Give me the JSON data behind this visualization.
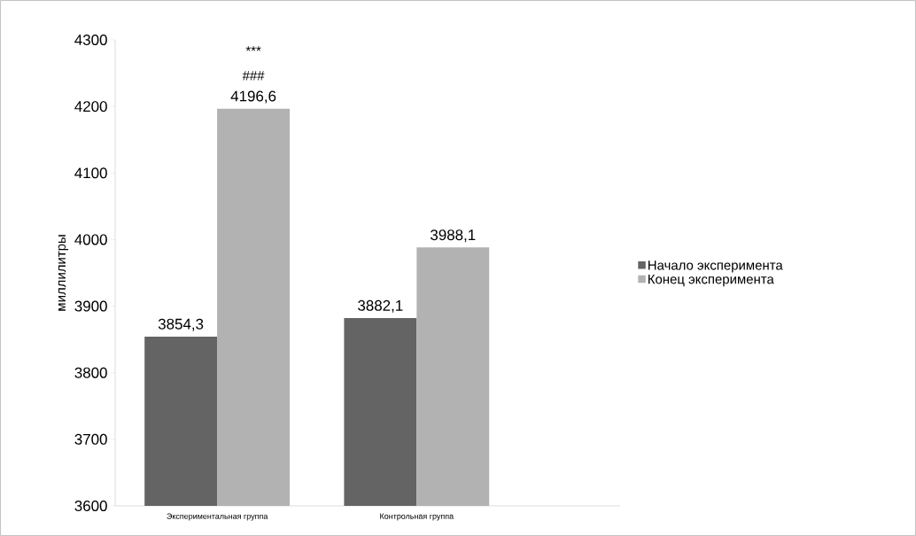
{
  "chart_data": {
    "type": "bar",
    "ylabel": "миллилитры",
    "categories": [
      "Экспериментальная группа",
      "Контрольная группа"
    ],
    "series": [
      {
        "name": "Начало эксперимента",
        "color": "#646464",
        "values": [
          3854.3,
          3882.1
        ],
        "value_labels": [
          "3854,3",
          "3882,1"
        ]
      },
      {
        "name": "Конец эксперимента",
        "color": "#b2b2b2",
        "values": [
          4196.6,
          3988.1
        ],
        "value_labels": [
          "4196,6",
          "3988,1"
        ]
      }
    ],
    "annotations": [
      "***",
      "###"
    ],
    "ylim": [
      3600,
      4300
    ],
    "yticks": [
      3600,
      3700,
      3800,
      3900,
      4000,
      4100,
      4200,
      4300
    ],
    "grid": false,
    "legend": "right"
  }
}
